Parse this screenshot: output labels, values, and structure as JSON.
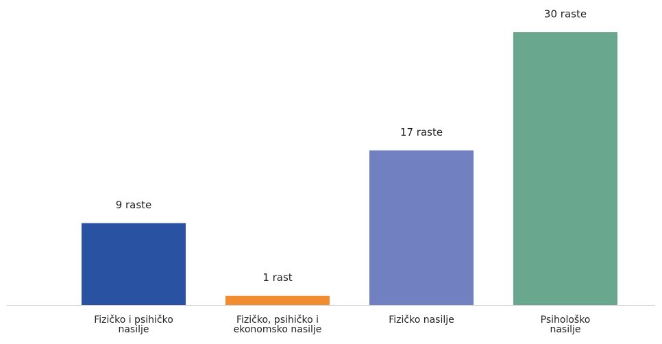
{
  "chart_data": {
    "type": "bar",
    "categories": [
      "Fizičko i psihičko\nnasilje",
      "Fizičko, psihičko i\nekonomsko nasilje",
      "Fizičko nasilje",
      "Psihološko\nnasilje"
    ],
    "values": [
      9,
      1,
      17,
      30
    ],
    "value_labels": [
      "9 raste",
      "1 rast",
      "17 raste",
      "30 raste"
    ],
    "colors": [
      "#2a52a3",
      "#f28c30",
      "#7080c0",
      "#6aa78f"
    ]
  }
}
